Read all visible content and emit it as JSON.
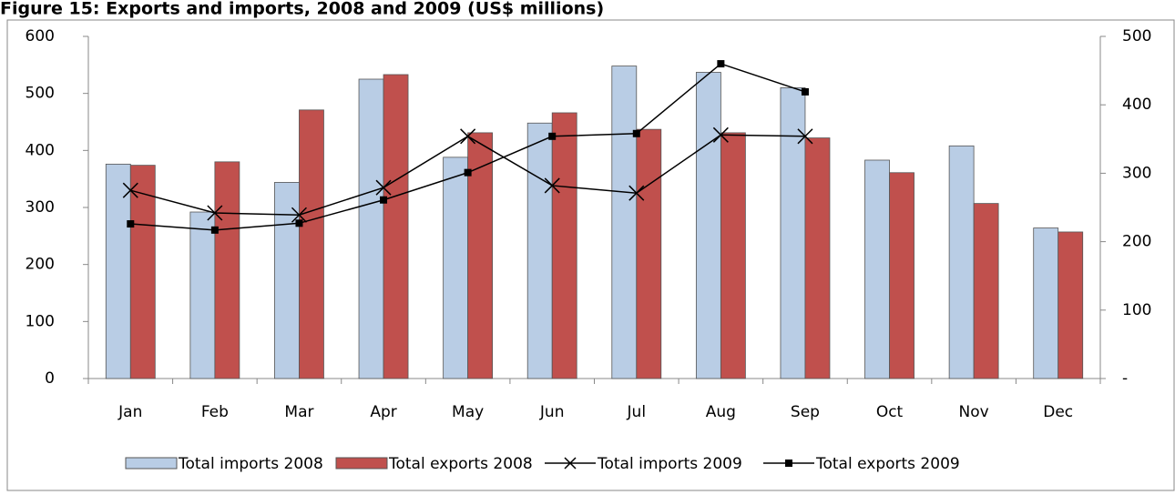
{
  "chart_data": {
    "type": "bar",
    "title": "Figure 15: Exports and imports, 2008 and 2009 (US$ millions)",
    "categories": [
      "Jan",
      "Feb",
      "Mar",
      "Apr",
      "May",
      "Jun",
      "Jul",
      "Aug",
      "Sep",
      "Oct",
      "Nov",
      "Dec"
    ],
    "series": [
      {
        "name": "Total imports 2008",
        "type": "bar",
        "color": "#b9cde5",
        "values": [
          376,
          292,
          344,
          525,
          388,
          448,
          548,
          537,
          510,
          383,
          408,
          264
        ]
      },
      {
        "name": "Total exports 2008",
        "type": "bar",
        "color": "#c0504d",
        "values": [
          374,
          380,
          471,
          533,
          431,
          466,
          437,
          431,
          422,
          361,
          307,
          257
        ]
      },
      {
        "name": "Total imports 2009",
        "type": "line",
        "marker": "x",
        "color": "#000000",
        "axis": "y2",
        "values": [
          275,
          242,
          239,
          279,
          354,
          282,
          271,
          356,
          354,
          null,
          null,
          null
        ]
      },
      {
        "name": "Total exports 2009",
        "type": "line",
        "marker": "square",
        "color": "#000000",
        "axis": "y2",
        "values": [
          226,
          217,
          227,
          261,
          301,
          354,
          358,
          460,
          419,
          null,
          null,
          null
        ]
      }
    ],
    "ylim": [
      0,
      600
    ],
    "yticks": [
      0,
      100,
      200,
      300,
      400,
      500,
      600
    ],
    "y2lim": [
      0,
      500
    ],
    "y2ticks": [
      {
        "value": 0,
        "label": "-"
      },
      100,
      200,
      300,
      400,
      500
    ],
    "legend": "bottom"
  }
}
